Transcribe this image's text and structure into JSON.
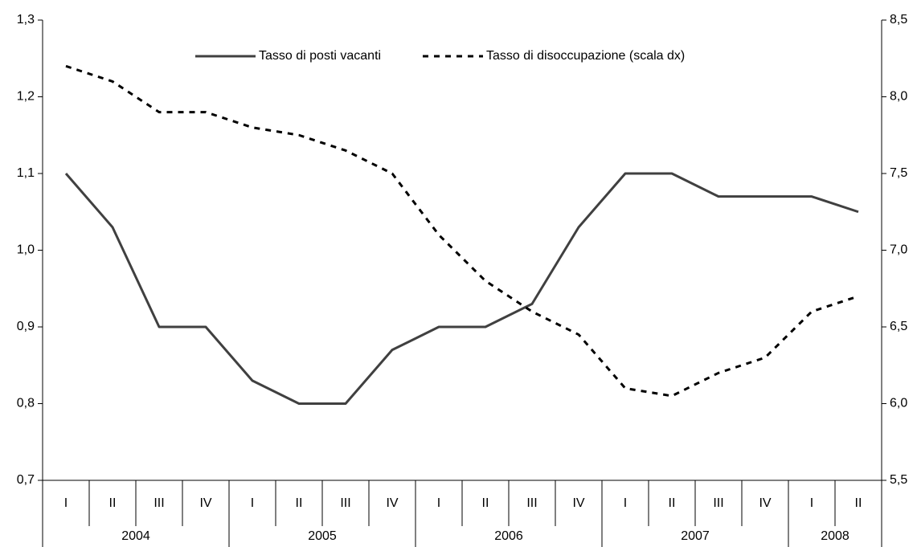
{
  "chart_data": {
    "type": "line",
    "years": [
      {
        "year": "2004",
        "quarters": [
          "I",
          "II",
          "III",
          "IV"
        ]
      },
      {
        "year": "2005",
        "quarters": [
          "I",
          "II",
          "III",
          "IV"
        ]
      },
      {
        "year": "2006",
        "quarters": [
          "I",
          "II",
          "III",
          "IV"
        ]
      },
      {
        "year": "2007",
        "quarters": [
          "I",
          "II",
          "III",
          "IV"
        ]
      },
      {
        "year": "2008",
        "quarters": [
          "I",
          "II"
        ]
      }
    ],
    "series": [
      {
        "name": "Tasso di posti vacanti",
        "color": "#404040",
        "dash": "solid",
        "values": [
          1.1,
          1.03,
          0.9,
          0.9,
          0.83,
          0.8,
          0.8,
          0.87,
          0.9,
          0.9,
          0.93,
          1.03,
          1.1,
          1.1,
          1.07,
          1.07,
          1.07,
          1.05
        ]
      },
      {
        "name": "Tasso di disoccupazione (scala dx)",
        "color": "#000000",
        "dash": "dashed",
        "axis": "y2",
        "values": [
          8.2,
          8.1,
          7.9,
          7.9,
          7.8,
          7.75,
          7.65,
          7.5,
          7.1,
          6.8,
          6.6,
          6.45,
          6.1,
          6.05,
          6.2,
          6.3,
          6.6,
          6.7
        ]
      }
    ],
    "ylim": [
      0.7,
      1.3
    ],
    "yticks": [
      {
        "value": 0.7,
        "label": "0,7"
      },
      {
        "value": 0.8,
        "label": "0,8"
      },
      {
        "value": 0.9,
        "label": "0,9"
      },
      {
        "value": 1.0,
        "label": "1,0"
      },
      {
        "value": 1.1,
        "label": "1,1"
      },
      {
        "value": 1.2,
        "label": "1,2"
      },
      {
        "value": 1.3,
        "label": "1,3"
      }
    ],
    "y2lim": [
      5.5,
      8.5
    ],
    "y2ticks": [
      {
        "value": 5.5,
        "label": "5,5"
      },
      {
        "value": 6.0,
        "label": "6,0"
      },
      {
        "value": 6.5,
        "label": "6,5"
      },
      {
        "value": 7.0,
        "label": "7,0"
      },
      {
        "value": 7.5,
        "label": "7,5"
      },
      {
        "value": 8.0,
        "label": "8,0"
      },
      {
        "value": 8.5,
        "label": "8,5"
      }
    ],
    "legend": "top",
    "grid": false
  }
}
